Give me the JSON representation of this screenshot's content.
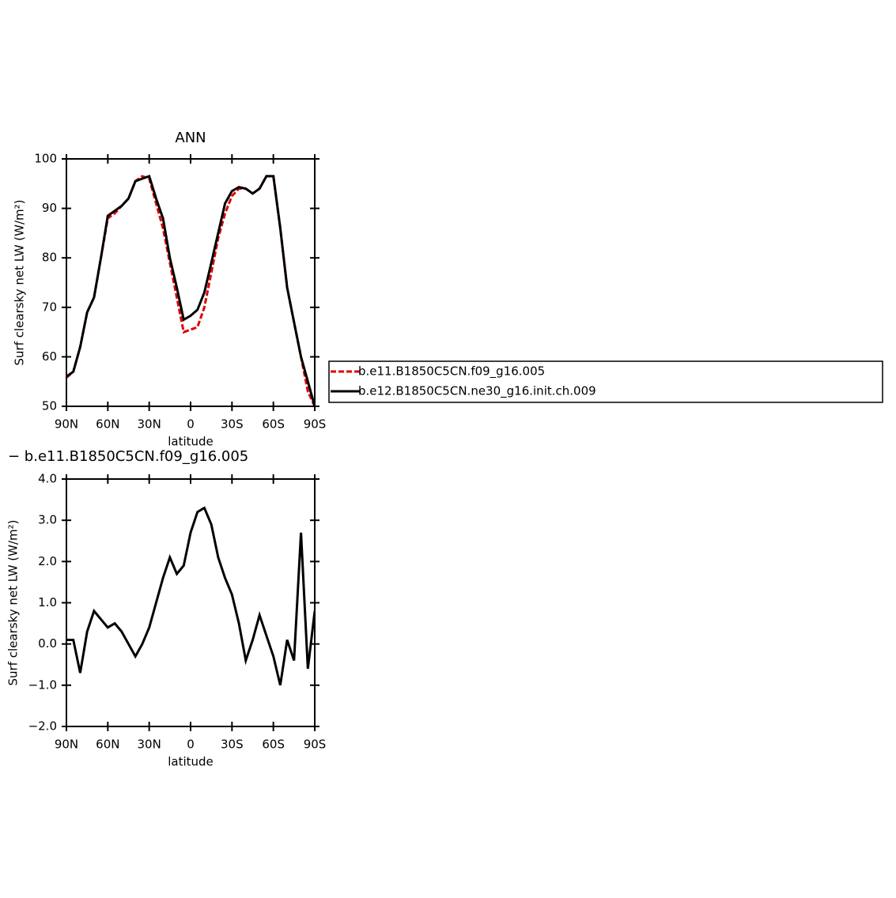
{
  "chart_data": [
    {
      "type": "line",
      "title": "ANN",
      "x_label": "latitude",
      "y_label": "Surf clearsky net LW (W/m²)",
      "x": [
        90,
        85,
        80,
        75,
        70,
        65,
        60,
        55,
        50,
        45,
        40,
        35,
        30,
        25,
        20,
        15,
        10,
        5,
        0,
        -5,
        -10,
        -15,
        -20,
        -25,
        -30,
        -35,
        -40,
        -45,
        -50,
        -55,
        -60,
        -65,
        -70,
        -75,
        -80,
        -85,
        -90
      ],
      "xlim": [
        90,
        -90
      ],
      "xticks": [
        {
          "value": 90,
          "label": "90N"
        },
        {
          "value": 60,
          "label": "60N"
        },
        {
          "value": 30,
          "label": "30N"
        },
        0,
        {
          "value": -30,
          "label": "30S"
        },
        {
          "value": -60,
          "label": "60S"
        },
        {
          "value": -90,
          "label": "90S"
        }
      ],
      "ylim": [
        50,
        100
      ],
      "yticks": [
        50,
        60,
        70,
        80,
        90,
        100
      ],
      "legend": "right",
      "series": [
        {
          "name": "b.e11.B1850C5CN.f09_g16.005",
          "color": "#e00000",
          "linestyle": "dashed",
          "values": [
            55.8,
            57,
            62,
            69,
            72,
            80,
            88,
            89,
            90.5,
            92,
            95.5,
            96.5,
            96,
            91,
            86,
            79,
            72,
            65,
            65.5,
            66,
            70,
            77,
            84,
            89,
            92.5,
            94,
            94,
            93,
            94,
            96.5,
            96.5,
            86,
            74,
            67,
            60,
            53,
            50
          ]
        },
        {
          "name": "b.e12.B1850C5CN.ne30_g16.init.ch.009",
          "color": "#000000",
          "linestyle": "solid",
          "values": [
            56,
            57,
            62,
            69,
            72,
            80,
            88.5,
            89.5,
            90.5,
            92,
            95.5,
            96,
            96.5,
            92,
            88,
            80,
            74,
            67.5,
            68.3,
            69.5,
            73,
            79,
            85,
            91,
            93.5,
            94.3,
            94,
            93,
            94,
            96.5,
            96.5,
            86,
            74,
            67,
            60,
            55,
            50
          ]
        }
      ]
    },
    {
      "type": "line",
      "title": "− b.e11.B1850C5CN.f09_g16.005",
      "x_label": "latitude",
      "y_label": "Surf clearsky net LW (W/m²)",
      "x": [
        90,
        85,
        80,
        75,
        70,
        65,
        60,
        55,
        50,
        45,
        40,
        35,
        30,
        25,
        20,
        15,
        10,
        5,
        0,
        -5,
        -10,
        -15,
        -20,
        -25,
        -30,
        -35,
        -40,
        -45,
        -50,
        -55,
        -60,
        -65,
        -70,
        -75,
        -80,
        -85,
        -90
      ],
      "xlim": [
        90,
        -90
      ],
      "xticks": [
        {
          "value": 90,
          "label": "90N"
        },
        {
          "value": 60,
          "label": "60N"
        },
        {
          "value": 30,
          "label": "30N"
        },
        0,
        {
          "value": -30,
          "label": "30S"
        },
        {
          "value": -60,
          "label": "60S"
        },
        {
          "value": -90,
          "label": "90S"
        }
      ],
      "ylim": [
        -2,
        4
      ],
      "yticks": [
        {
          "value": -2,
          "label": "−2.0"
        },
        {
          "value": -1,
          "label": "−1.0"
        },
        {
          "value": 0,
          "label": "0.0"
        },
        {
          "value": 1,
          "label": "1.0"
        },
        {
          "value": 2,
          "label": "2.0"
        },
        {
          "value": 3,
          "label": "3.0"
        },
        {
          "value": 4,
          "label": "4.0"
        }
      ],
      "series": [
        {
          "color": "#000000",
          "linestyle": "solid",
          "values": [
            0.1,
            0.1,
            -0.7,
            0.3,
            0.8,
            0.6,
            0.4,
            0.5,
            0.3,
            0.0,
            -0.3,
            0.0,
            0.4,
            1.0,
            1.6,
            2.1,
            1.7,
            1.9,
            2.7,
            3.2,
            3.3,
            2.9,
            2.1,
            1.6,
            1.2,
            0.5,
            -0.4,
            0.1,
            0.7,
            0.2,
            -0.3,
            -1.0,
            0.1,
            -0.4,
            2.7,
            -0.6,
            0.8
          ]
        }
      ]
    }
  ]
}
